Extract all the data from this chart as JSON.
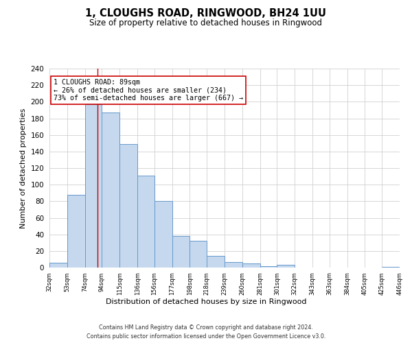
{
  "title": "1, CLOUGHS ROAD, RINGWOOD, BH24 1UU",
  "subtitle": "Size of property relative to detached houses in Ringwood",
  "xlabel": "Distribution of detached houses by size in Ringwood",
  "ylabel": "Number of detached properties",
  "bar_edges": [
    32,
    53,
    74,
    94,
    115,
    136,
    156,
    177,
    198,
    218,
    239,
    260,
    281,
    301,
    322,
    343,
    363,
    384,
    405,
    425,
    446
  ],
  "bar_heights": [
    6,
    88,
    197,
    187,
    149,
    111,
    80,
    38,
    32,
    14,
    7,
    5,
    2,
    3,
    0,
    0,
    0,
    0,
    0,
    1
  ],
  "bar_color": "#c5d8ee",
  "bar_edge_color": "#6699cc",
  "property_line_x": 89,
  "property_line_color": "#cc0000",
  "annotation_text": "1 CLOUGHS ROAD: 89sqm\n← 26% of detached houses are smaller (234)\n73% of semi-detached houses are larger (667) →",
  "annotation_box_color": "#ffffff",
  "annotation_box_edge": "#cc0000",
  "ylim": [
    0,
    240
  ],
  "yticks": [
    0,
    20,
    40,
    60,
    80,
    100,
    120,
    140,
    160,
    180,
    200,
    220,
    240
  ],
  "tick_labels": [
    "32sqm",
    "53sqm",
    "74sqm",
    "94sqm",
    "115sqm",
    "136sqm",
    "156sqm",
    "177sqm",
    "198sqm",
    "218sqm",
    "239sqm",
    "260sqm",
    "281sqm",
    "301sqm",
    "322sqm",
    "343sqm",
    "363sqm",
    "384sqm",
    "405sqm",
    "425sqm",
    "446sqm"
  ],
  "footer_line1": "Contains HM Land Registry data © Crown copyright and database right 2024.",
  "footer_line2": "Contains public sector information licensed under the Open Government Licence v3.0.",
  "background_color": "#ffffff",
  "grid_color": "#d0d0d0"
}
